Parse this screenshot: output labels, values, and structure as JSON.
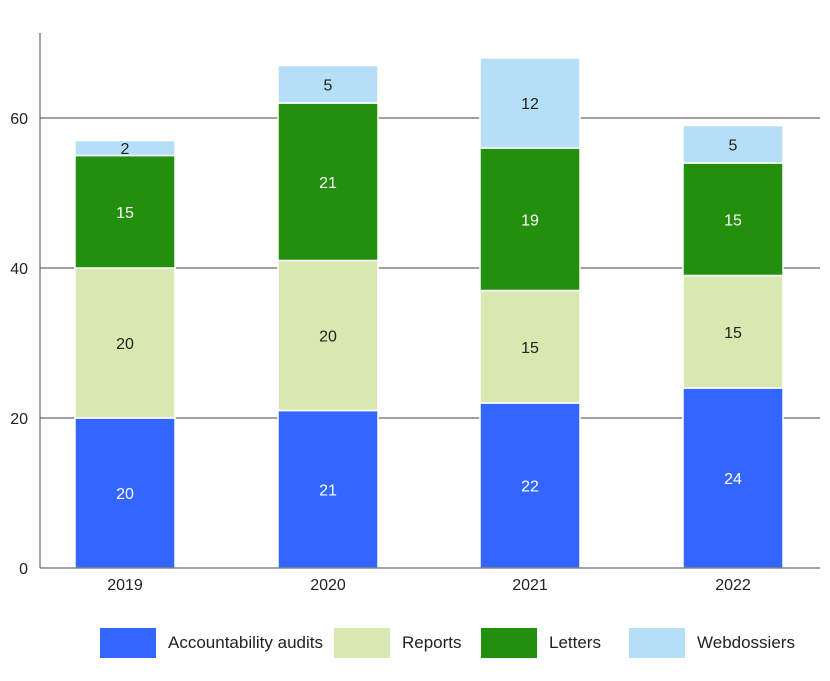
{
  "chart_data": {
    "type": "bar",
    "stacked": true,
    "categories": [
      "2019",
      "2020",
      "2021",
      "2022"
    ],
    "series": [
      {
        "name": "Accountability audits",
        "color": "#3366ff",
        "label_color": "#ffffff",
        "values": [
          20,
          21,
          22,
          24
        ]
      },
      {
        "name": "Reports",
        "color": "#d9e8b0",
        "label_color": "#222222",
        "values": [
          20,
          20,
          15,
          15
        ]
      },
      {
        "name": "Letters",
        "color": "#22900d",
        "label_color": "#ffffff",
        "values": [
          15,
          21,
          19,
          15
        ]
      },
      {
        "name": "Webdossiers",
        "color": "#b5dff7",
        "label_color": "#222222",
        "values": [
          2,
          5,
          12,
          5
        ]
      }
    ],
    "y_ticks": [
      0,
      20,
      40,
      60
    ],
    "ylim": [
      0,
      70
    ],
    "grid": true,
    "legend_position": "bottom",
    "title": "",
    "xlabel": "",
    "ylabel": ""
  }
}
